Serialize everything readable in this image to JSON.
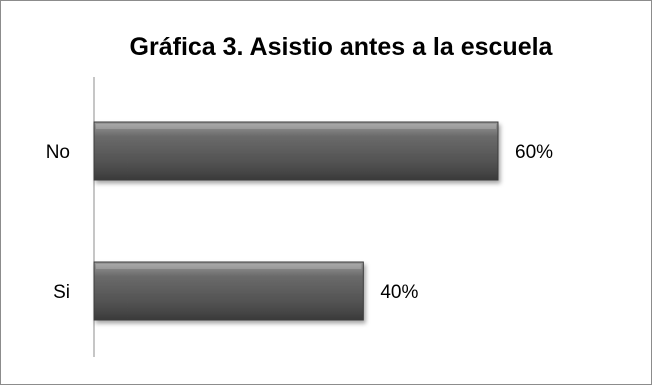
{
  "chart_data": {
    "type": "bar",
    "orientation": "horizontal",
    "title": "Gráfica 3. Asistio antes a la escuela",
    "categories": [
      "No",
      "Si"
    ],
    "values": [
      60,
      40
    ],
    "data_labels": [
      "60%",
      "40%"
    ],
    "xlabel": "",
    "ylabel": "",
    "xlim": [
      0,
      60
    ],
    "grid": false,
    "legend": "none",
    "bar_color": "#595959"
  }
}
